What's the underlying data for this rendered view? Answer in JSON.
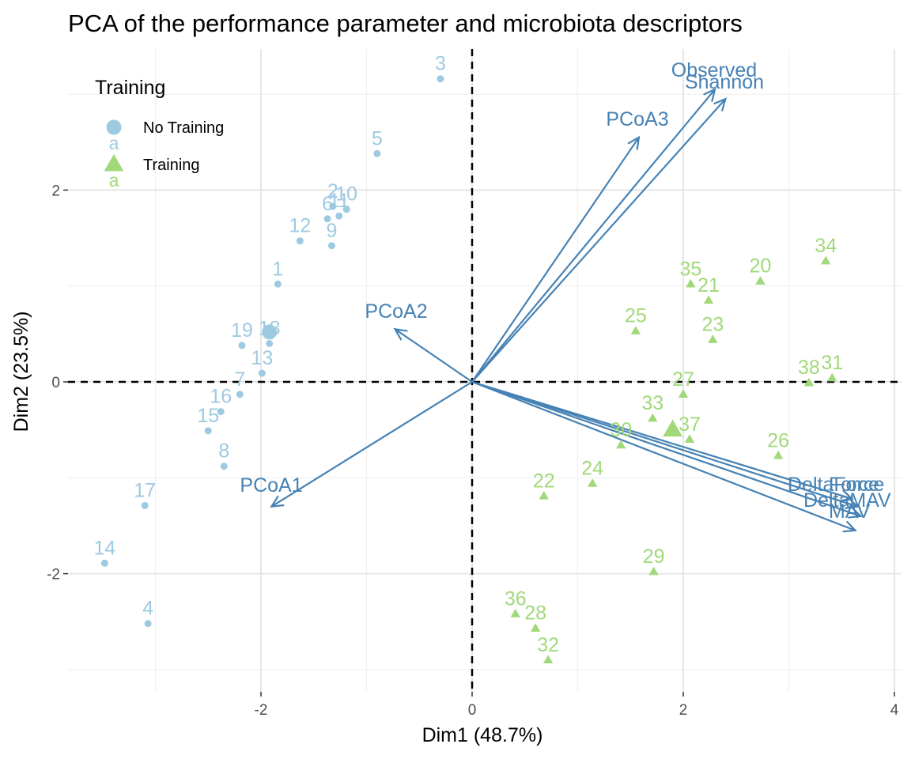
{
  "chart_data": {
    "type": "scatter",
    "title": "PCA of the performance parameter and microbiota descriptors",
    "xlabel": "Dim1 (48.7%)",
    "ylabel": "Dim2 (23.5%)",
    "xlim": [
      -3.8,
      4.0
    ],
    "ylim": [
      -3.2,
      3.5
    ],
    "xticks": [
      -2,
      0,
      2,
      4
    ],
    "yticks": [
      -2,
      0,
      2
    ],
    "grid": true,
    "legend": {
      "title": "Training",
      "position": "top-left",
      "entries": [
        {
          "name": "No Training",
          "shape": "circle",
          "color": "#9ECAE1",
          "glyph": "a"
        },
        {
          "name": "Training",
          "shape": "triangle",
          "color": "#A1D97A",
          "glyph": "a"
        }
      ]
    },
    "series": [
      {
        "name": "No Training",
        "color": "#9ECAE1",
        "shape": "circle",
        "centroid": [
          -1.92,
          0.52
        ],
        "points": [
          {
            "label": "3",
            "x": -0.3,
            "y": 3.16
          },
          {
            "label": "5",
            "x": -0.9,
            "y": 2.38
          },
          {
            "label": "2",
            "x": -1.32,
            "y": 1.83
          },
          {
            "label": "10",
            "x": -1.19,
            "y": 1.8
          },
          {
            "label": "6",
            "x": -1.37,
            "y": 1.7
          },
          {
            "label": "11",
            "x": -1.26,
            "y": 1.73
          },
          {
            "label": "12",
            "x": -1.63,
            "y": 1.47
          },
          {
            "label": "9",
            "x": -1.33,
            "y": 1.42
          },
          {
            "label": "1",
            "x": -1.84,
            "y": 1.02
          },
          {
            "label": "18",
            "x": -1.92,
            "y": 0.4
          },
          {
            "label": "19",
            "x": -2.18,
            "y": 0.38
          },
          {
            "label": "13",
            "x": -1.99,
            "y": 0.09
          },
          {
            "label": "7",
            "x": -2.2,
            "y": -0.13
          },
          {
            "label": "16",
            "x": -2.38,
            "y": -0.31
          },
          {
            "label": "15",
            "x": -2.5,
            "y": -0.51
          },
          {
            "label": "8",
            "x": -2.35,
            "y": -0.88
          },
          {
            "label": "17",
            "x": -3.1,
            "y": -1.29
          },
          {
            "label": "14",
            "x": -3.48,
            "y": -1.89
          },
          {
            "label": "4",
            "x": -3.07,
            "y": -2.52
          }
        ]
      },
      {
        "name": "Training",
        "color": "#A1D97A",
        "shape": "triangle",
        "centroid": [
          1.9,
          -0.5
        ],
        "points": [
          {
            "label": "34",
            "x": 3.35,
            "y": 1.26
          },
          {
            "label": "35",
            "x": 2.07,
            "y": 1.02
          },
          {
            "label": "20",
            "x": 2.73,
            "y": 1.05
          },
          {
            "label": "21",
            "x": 2.24,
            "y": 0.85
          },
          {
            "label": "25",
            "x": 1.55,
            "y": 0.53
          },
          {
            "label": "23",
            "x": 2.28,
            "y": 0.44
          },
          {
            "label": "38",
            "x": 3.19,
            "y": -0.01
          },
          {
            "label": "31",
            "x": 3.41,
            "y": 0.04
          },
          {
            "label": "27",
            "x": 2.0,
            "y": -0.13
          },
          {
            "label": "33",
            "x": 1.71,
            "y": -0.38
          },
          {
            "label": "37",
            "x": 2.06,
            "y": -0.6
          },
          {
            "label": "30",
            "x": 1.41,
            "y": -0.66
          },
          {
            "label": "26",
            "x": 2.9,
            "y": -0.77
          },
          {
            "label": "24",
            "x": 1.14,
            "y": -1.06
          },
          {
            "label": "22",
            "x": 0.68,
            "y": -1.19
          },
          {
            "label": "29",
            "x": 1.72,
            "y": -1.98
          },
          {
            "label": "36",
            "x": 0.41,
            "y": -2.42
          },
          {
            "label": "28",
            "x": 0.6,
            "y": -2.57
          },
          {
            "label": "32",
            "x": 0.72,
            "y": -2.9
          }
        ]
      }
    ],
    "loadings": [
      {
        "label": "Observed",
        "x": 2.3,
        "y": 3.05
      },
      {
        "label": "Shannon",
        "x": 2.4,
        "y": 2.95
      },
      {
        "label": "PCoA3",
        "x": 1.58,
        "y": 2.55
      },
      {
        "label": "PCoA2",
        "x": -0.73,
        "y": 0.55
      },
      {
        "label": "PCoA1",
        "x": -1.9,
        "y": -1.3
      },
      {
        "label": "DeltaForce",
        "x": 3.6,
        "y": -1.22
      },
      {
        "label": "Force",
        "x": 3.65,
        "y": -1.3
      },
      {
        "label": "DeltaMAV",
        "x": 3.68,
        "y": -1.4
      },
      {
        "label": "MAV",
        "x": 3.63,
        "y": -1.55
      }
    ],
    "arrow_color": "#4682B4"
  }
}
